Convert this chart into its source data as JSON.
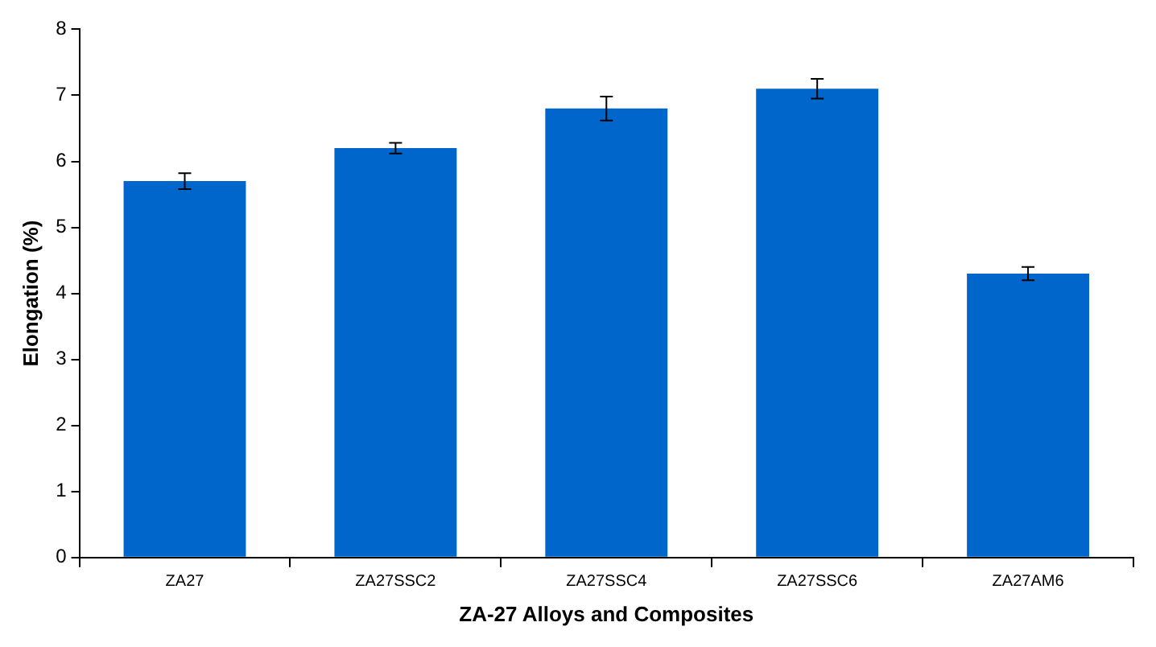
{
  "chart_data": {
    "type": "bar",
    "xlabel": "ZA-27 Alloys and Composites",
    "ylabel": "Elongation (%)",
    "categories": [
      "ZA27",
      "ZA27SSC2",
      "ZA27SSC4",
      "ZA27SSC6",
      "ZA27AM6"
    ],
    "values": [
      5.7,
      6.2,
      6.8,
      7.1,
      4.3
    ],
    "errors": [
      0.12,
      0.08,
      0.18,
      0.15,
      0.1
    ],
    "color": "#0066cc",
    "ylim": [
      0,
      8
    ],
    "yticks": [
      0,
      1,
      2,
      3,
      4,
      5,
      6,
      7,
      8
    ],
    "grid": false,
    "legend": false
  }
}
